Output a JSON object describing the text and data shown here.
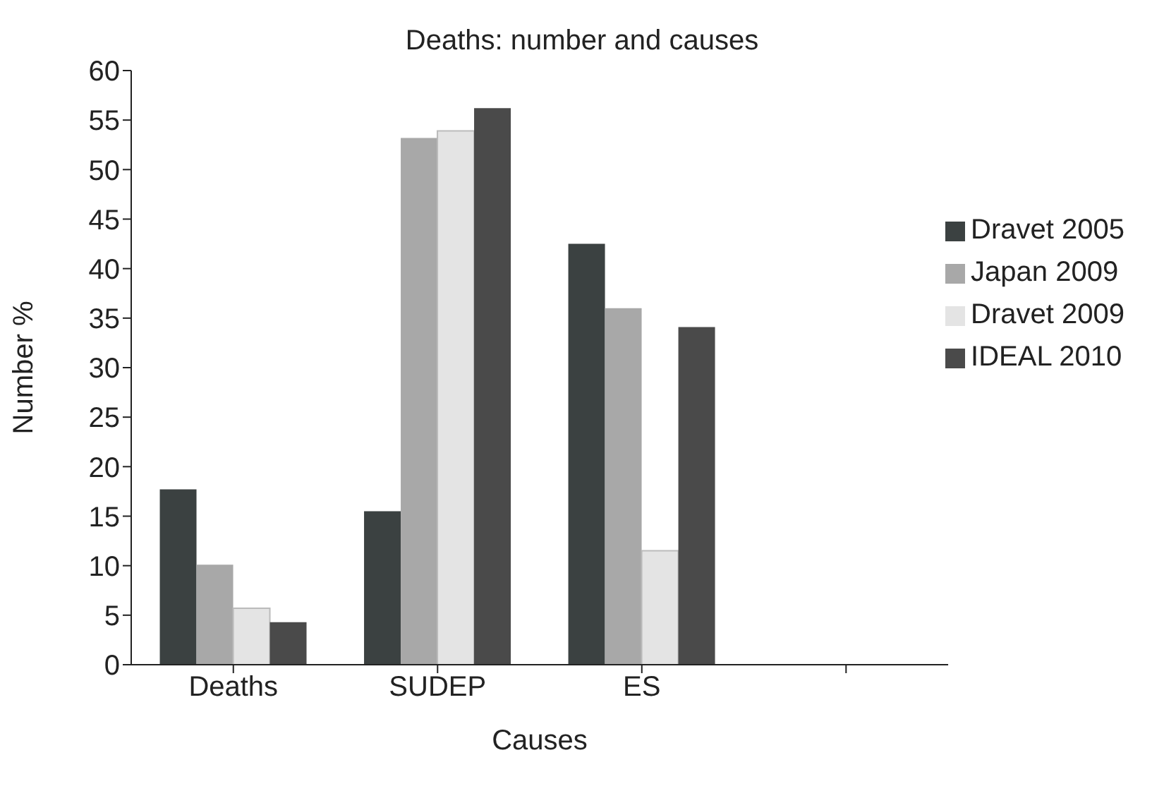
{
  "chart_data": {
    "type": "bar",
    "title": "Deaths: number and causes",
    "xlabel": "Causes",
    "ylabel": "Number %",
    "categories": [
      "Deaths",
      "SUDEP",
      "ES",
      null
    ],
    "series": [
      {
        "name": "Dravet 2005",
        "color": "#3b4141",
        "values": [
          17.7,
          15.5,
          42.5,
          null
        ]
      },
      {
        "name": "Japan 2009",
        "color": "#a8a8a8",
        "values": [
          10.1,
          53.2,
          36,
          null
        ]
      },
      {
        "name": "Dravet 2009",
        "color": "#e4e4e4",
        "values": [
          5.7,
          53.9,
          11.5,
          null
        ]
      },
      {
        "name": "IDEAL 2010",
        "color": "#4a4a4a",
        "values": [
          4.3,
          56.2,
          34.1,
          null
        ]
      }
    ],
    "ylim": [
      0,
      60
    ],
    "yticks": [
      0,
      5,
      10,
      15,
      20,
      25,
      30,
      35,
      40,
      45,
      50,
      55,
      60
    ],
    "grid": false,
    "legend": "top right"
  }
}
